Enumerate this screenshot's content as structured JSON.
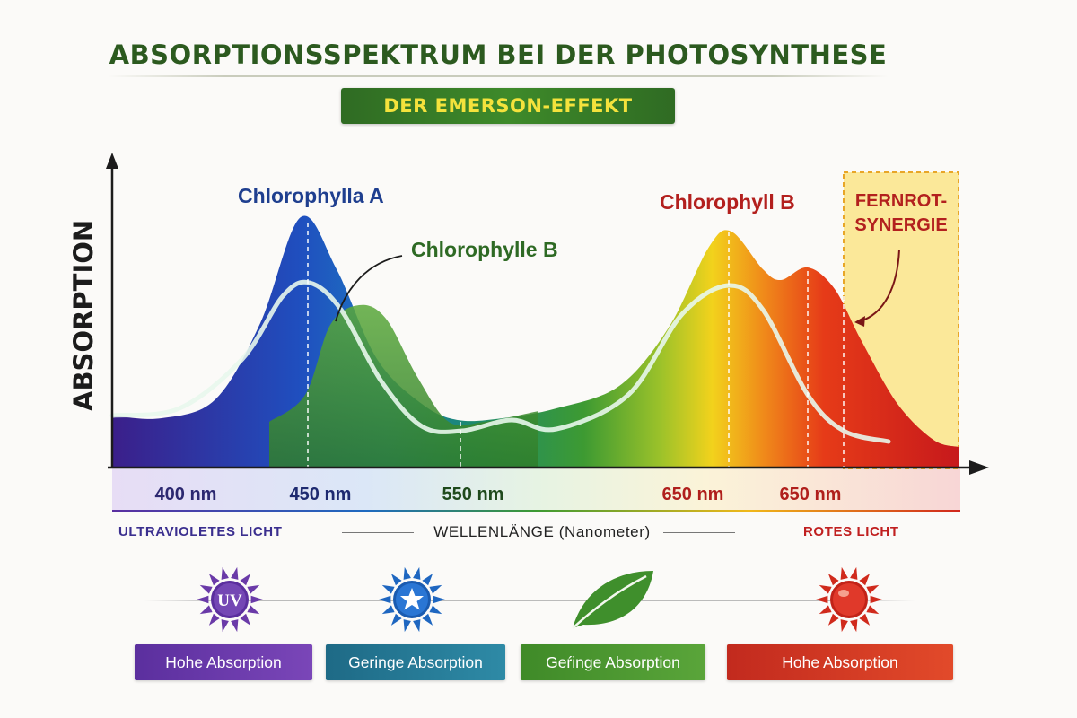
{
  "title": "ABSORPTIONSSPEKTRUM BEI DER PHOTOSYNTHESE",
  "subtitle": "DER EMERSON-EFFEKT",
  "colors": {
    "title_green": "#2c5a1f",
    "banner_green": "#3e8a2a",
    "banner_text": "#f4e23c",
    "chlorophyll_a_label": "#1f3f8f",
    "chlorophyll_b_green_label": "#2e6a24",
    "chlorophyll_b_red_label": "#b3201e",
    "far_red_zone": "#fbe27a"
  },
  "chart_data": {
    "type": "area",
    "ylabel": "ABSORPTION",
    "xlabel": "WELLENLÄNGE (Nanometer)",
    "x_tick_labels": [
      "400 nm",
      "450 nm",
      "550 nm",
      "650 nm",
      "650 nm"
    ],
    "y_ticks_shown": false,
    "grid": false,
    "series": [
      {
        "name": "Chlorophylla A",
        "style": "spectrum-filled area, peaks at 450 nm and 650 nm",
        "points": [
          [
            0,
            0.08
          ],
          [
            0.08,
            0.1
          ],
          [
            0.16,
            0.25
          ],
          [
            0.2,
            0.68
          ],
          [
            0.26,
            0.15
          ],
          [
            0.4,
            0.12
          ],
          [
            0.55,
            0.2
          ],
          [
            0.7,
            0.65
          ],
          [
            0.8,
            0.42
          ],
          [
            0.9,
            0.48
          ],
          [
            1.0,
            0.05
          ]
        ]
      },
      {
        "name": "Chlorophylle B",
        "style": "green filled area, shoulder after 450 nm",
        "points": [
          [
            0.18,
            0.1
          ],
          [
            0.25,
            0.4
          ],
          [
            0.3,
            0.32
          ],
          [
            0.4,
            0.08
          ],
          [
            0.5,
            0.12
          ],
          [
            0.6,
            0.15
          ]
        ]
      },
      {
        "name": "Chlorophyll B",
        "style": "pale outline curve",
        "points": [
          [
            0,
            0.08
          ],
          [
            0.15,
            0.2
          ],
          [
            0.22,
            0.44
          ],
          [
            0.3,
            0.22
          ],
          [
            0.4,
            0.06
          ],
          [
            0.5,
            0.1
          ],
          [
            0.6,
            0.1
          ],
          [
            0.7,
            0.45
          ],
          [
            0.8,
            0.16
          ],
          [
            0.88,
            0.05
          ]
        ]
      }
    ],
    "annotations": [
      {
        "text": "Chlorophylla A",
        "target": "first peak"
      },
      {
        "text": "Chlorophylle B",
        "target": "shoulder after 450 nm"
      },
      {
        "text": "Chlorophyll B",
        "target": "red peak"
      },
      {
        "text": "FERNROT-",
        "target": "far-red zone"
      },
      {
        "text": "SYNERGIE",
        "target": "far-red zone"
      }
    ],
    "regions": {
      "left": "ULTRAVIOLETES LICHT",
      "right": "ROTES LICHT"
    }
  },
  "labels": {
    "chlorophylla_a": "Chlorophylla A",
    "chlorophylle_b": "Chlorophylle B",
    "chlorophyll_b": "Chlorophyll B",
    "fernrot_line1": "FERNROT-",
    "fernrot_line2": "SYNERGIE",
    "uv_light": "ULTRAVIOLETES LICHT",
    "red_light": "ROTES LICHT",
    "uv_icon_text": "UV"
  },
  "legend_row": [
    {
      "icon": "uv-sun-icon",
      "label": "Hohe Absorption",
      "color": "#6a3aa8"
    },
    {
      "icon": "blue-star-sun-icon",
      "label": "Geringe Absorption",
      "color": "#2a7e9a"
    },
    {
      "icon": "leaf-icon",
      "label": "Geŕinge Absorption",
      "color": "#4d9a32"
    },
    {
      "icon": "red-sun-icon",
      "label": "Hohe Absorption",
      "color": "#d3351f"
    }
  ]
}
